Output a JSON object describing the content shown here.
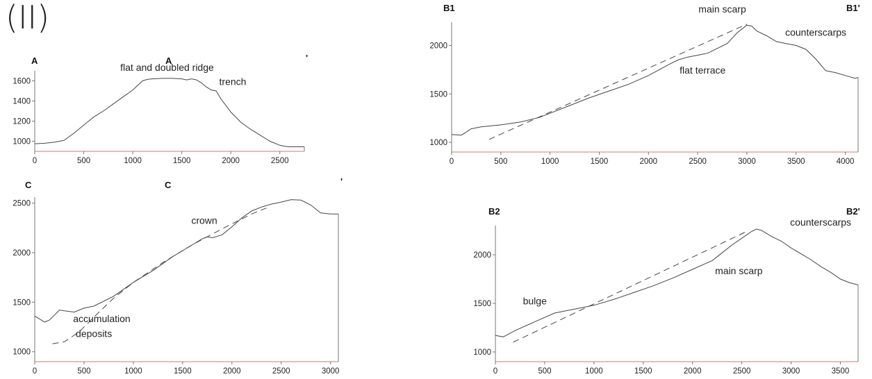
{
  "figure_label": "(II)",
  "chart_data": [
    {
      "id": "A",
      "type": "line",
      "label_start": "A",
      "label_end": "A",
      "label_end_mark": "'",
      "xlim": [
        0,
        2750
      ],
      "ylim": [
        900,
        1700
      ],
      "x_ticks": [
        0,
        500,
        1000,
        1500,
        2000,
        2500
      ],
      "y_ticks": [
        1000,
        1200,
        1400,
        1600
      ],
      "series": [
        {
          "style": "solid",
          "x": [
            0,
            100,
            200,
            300,
            400,
            500,
            550,
            600,
            700,
            800,
            900,
            1000,
            1100,
            1150,
            1200,
            1300,
            1400,
            1500,
            1550,
            1600,
            1650,
            1700,
            1750,
            1800,
            1850,
            1900,
            2000,
            2100,
            2200,
            2300,
            2400,
            2500,
            2550,
            2600,
            2750
          ],
          "y": [
            975,
            980,
            990,
            1010,
            1080,
            1160,
            1200,
            1240,
            1300,
            1370,
            1440,
            1510,
            1600,
            1615,
            1620,
            1625,
            1625,
            1620,
            1610,
            1620,
            1610,
            1580,
            1540,
            1510,
            1500,
            1420,
            1290,
            1190,
            1120,
            1060,
            1000,
            960,
            950,
            945,
            945
          ]
        }
      ],
      "annotations": [
        {
          "text": "flat and doubled ridge",
          "x": 1350,
          "y": 1700
        },
        {
          "text": "trench",
          "x": 2020,
          "y": 1560
        }
      ]
    },
    {
      "id": "B1",
      "type": "line",
      "label_start": "B1",
      "label_end": "B1'",
      "xlim": [
        0,
        4130
      ],
      "ylim": [
        900,
        2240
      ],
      "x_ticks": [
        0,
        500,
        1000,
        1500,
        2000,
        2500,
        3000,
        3500,
        4000
      ],
      "y_ticks": [
        1000,
        1500,
        2000
      ],
      "series": [
        {
          "style": "solid",
          "x": [
            0,
            100,
            200,
            300,
            500,
            700,
            900,
            1000,
            1200,
            1400,
            1600,
            1800,
            2000,
            2200,
            2300,
            2400,
            2600,
            2800,
            2900,
            3000,
            3050,
            3100,
            3200,
            3300,
            3400,
            3500,
            3600,
            3700,
            3800,
            3900,
            4000,
            4100,
            4130
          ],
          "y": [
            1080,
            1075,
            1140,
            1160,
            1180,
            1210,
            1260,
            1300,
            1380,
            1460,
            1530,
            1600,
            1690,
            1800,
            1850,
            1880,
            1920,
            2020,
            2130,
            2210,
            2200,
            2150,
            2100,
            2040,
            2020,
            2000,
            1960,
            1860,
            1740,
            1720,
            1690,
            1660,
            1670
          ]
        },
        {
          "style": "dashed",
          "x": [
            380,
            3000
          ],
          "y": [
            1030,
            2220
          ]
        }
      ],
      "annotations": [
        {
          "text": "main scarp",
          "x": 2750,
          "y": 2340
        },
        {
          "text": "counterscarps",
          "x": 3700,
          "y": 2100
        },
        {
          "text": "flat terrace",
          "x": 2550,
          "y": 1710
        }
      ]
    },
    {
      "id": "C",
      "type": "line",
      "label_start": "C",
      "label_end": "C",
      "label_end_mark": "'",
      "xlim": [
        0,
        3080
      ],
      "ylim": [
        900,
        2560
      ],
      "x_ticks": [
        0,
        500,
        1000,
        1500,
        2000,
        2500,
        3000
      ],
      "y_ticks": [
        1000,
        1500,
        2000,
        2500
      ],
      "series": [
        {
          "style": "solid",
          "x": [
            0,
            100,
            150,
            250,
            400,
            500,
            600,
            800,
            1000,
            1200,
            1400,
            1600,
            1700,
            1750,
            1800,
            1900,
            2000,
            2100,
            2200,
            2300,
            2400,
            2500,
            2600,
            2700,
            2800,
            2900,
            3000,
            3080
          ],
          "y": [
            1360,
            1300,
            1320,
            1420,
            1400,
            1440,
            1460,
            1560,
            1700,
            1820,
            1960,
            2080,
            2140,
            2160,
            2150,
            2180,
            2260,
            2350,
            2420,
            2460,
            2490,
            2510,
            2535,
            2530,
            2480,
            2400,
            2390,
            2390
          ]
        },
        {
          "style": "dashed",
          "x": [
            180,
            300,
            450,
            600,
            800,
            1000,
            1300,
            1600,
            1900,
            2200,
            2350
          ],
          "y": [
            1080,
            1100,
            1200,
            1350,
            1540,
            1700,
            1900,
            2080,
            2240,
            2390,
            2450
          ]
        }
      ],
      "annotations": [
        {
          "text": "crown",
          "x": 1720,
          "y": 2290
        },
        {
          "text": "accumulation",
          "x": 680,
          "y": 1300
        },
        {
          "text": "deposits",
          "x": 600,
          "y": 1150
        }
      ]
    },
    {
      "id": "B2",
      "type": "line",
      "label_start": "B2",
      "label_end": "B2'",
      "xlim": [
        0,
        3680
      ],
      "ylim": [
        900,
        2300
      ],
      "x_ticks": [
        0,
        500,
        1000,
        1500,
        2000,
        2500,
        3000,
        3500
      ],
      "y_ticks": [
        1000,
        1500,
        2000
      ],
      "series": [
        {
          "style": "solid",
          "x": [
            0,
            80,
            200,
            400,
            600,
            800,
            1000,
            1200,
            1400,
            1600,
            1800,
            2000,
            2200,
            2300,
            2400,
            2500,
            2600,
            2650,
            2700,
            2800,
            2900,
            3000,
            3100,
            3200,
            3300,
            3400,
            3500,
            3600,
            3680
          ],
          "y": [
            1170,
            1155,
            1220,
            1310,
            1400,
            1440,
            1480,
            1540,
            1610,
            1680,
            1760,
            1850,
            1940,
            2020,
            2100,
            2170,
            2240,
            2265,
            2250,
            2190,
            2140,
            2070,
            2010,
            1950,
            1880,
            1820,
            1750,
            1710,
            1690
          ]
        },
        {
          "style": "dashed",
          "x": [
            180,
            2550
          ],
          "y": [
            1100,
            2240
          ]
        }
      ],
      "annotations": [
        {
          "text": "counterscarps",
          "x": 3300,
          "y": 2300
        },
        {
          "text": "main scarp",
          "x": 2470,
          "y": 1800
        },
        {
          "text": "bulge",
          "x": 400,
          "y": 1490
        }
      ]
    }
  ]
}
